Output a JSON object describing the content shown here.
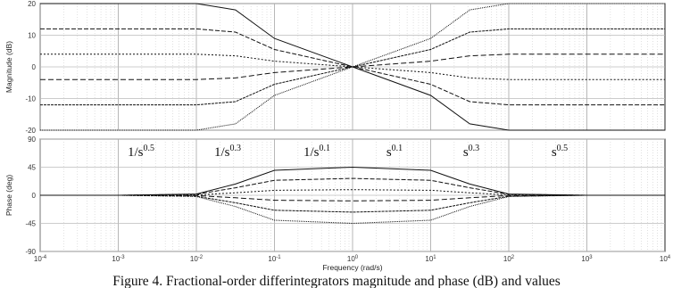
{
  "chart_data": [
    {
      "type": "line",
      "panel": "magnitude",
      "ylabel": "Magnitude (dB)",
      "xscale": "log",
      "xlim": [
        0.0001,
        10000
      ],
      "ylim": [
        -20,
        20
      ],
      "yticks": [
        "20",
        "10",
        "0",
        "-10",
        "-20"
      ],
      "grid": true,
      "series": [
        {
          "order": -0.5,
          "gain_db": [
            20,
            20,
            20,
            18,
            9,
            0,
            -9,
            -18,
            -20,
            -20,
            -20
          ]
        },
        {
          "order": -0.3,
          "gain_db": [
            12,
            12,
            12,
            11,
            5.5,
            0,
            -5.5,
            -11,
            -12,
            -12,
            -12
          ]
        },
        {
          "order": -0.1,
          "gain_db": [
            4,
            4,
            4,
            3.5,
            1.8,
            0,
            -1.8,
            -3.5,
            -4,
            -4,
            -4
          ]
        },
        {
          "order": 0.1,
          "gain_db": [
            -4,
            -4,
            -4,
            -3.5,
            -1.8,
            0,
            1.8,
            3.5,
            4,
            4,
            4
          ]
        },
        {
          "order": 0.3,
          "gain_db": [
            -12,
            -12,
            -12,
            -11,
            -5.5,
            0,
            5.5,
            11,
            12,
            12,
            12
          ]
        },
        {
          "order": 0.5,
          "gain_db": [
            -20,
            -20,
            -20,
            -18,
            -9,
            0,
            9,
            18,
            20,
            20,
            20
          ]
        }
      ]
    },
    {
      "type": "line",
      "panel": "phase",
      "ylabel": "Phase (deg)",
      "xlabel": "Frequency  (rad/s)",
      "xscale": "log",
      "xlim": [
        0.0001,
        10000
      ],
      "ylim": [
        -90,
        90
      ],
      "yticks": [
        "90",
        "45",
        "0",
        "-45",
        "-90"
      ],
      "xticks": [
        "10^-4",
        "10^-3",
        "10^-2",
        "10^-1",
        "10^0",
        "10^1",
        "10^2",
        "10^3",
        "10^4"
      ],
      "grid": true,
      "series": [
        {
          "order": -0.5,
          "phase_deg": [
            0,
            0,
            2,
            18,
            40,
            45,
            40,
            18,
            2,
            0,
            0
          ]
        },
        {
          "order": -0.3,
          "phase_deg": [
            0,
            0,
            1.5,
            12,
            24,
            27,
            24,
            12,
            1.5,
            0,
            0
          ]
        },
        {
          "order": -0.1,
          "phase_deg": [
            0,
            0,
            0.5,
            4,
            8,
            9,
            8,
            4,
            0.5,
            0,
            0
          ]
        },
        {
          "order": 0.1,
          "phase_deg": [
            0,
            0,
            -0.5,
            -4,
            -8,
            -9,
            -8,
            -4,
            -0.5,
            0,
            0
          ]
        },
        {
          "order": 0.3,
          "phase_deg": [
            0,
            0,
            -1.5,
            -12,
            -24,
            -27,
            -24,
            -12,
            -1.5,
            0,
            0
          ]
        },
        {
          "order": 0.5,
          "phase_deg": [
            0,
            0,
            -2,
            -18,
            -40,
            -45,
            -40,
            -18,
            -2,
            0,
            0
          ]
        }
      ],
      "annotations": [
        {
          "base": "1/s",
          "exp": "0.5"
        },
        {
          "base": "1/s",
          "exp": "0.3"
        },
        {
          "base": "1/s",
          "exp": "0.1"
        },
        {
          "base": "s",
          "exp": "0.1"
        },
        {
          "base": "s",
          "exp": "0.3"
        },
        {
          "base": "s",
          "exp": "0.5"
        }
      ]
    }
  ],
  "caption": "Figure 4. Fractional-order differintegrators magnitude and phase (dB) and values"
}
